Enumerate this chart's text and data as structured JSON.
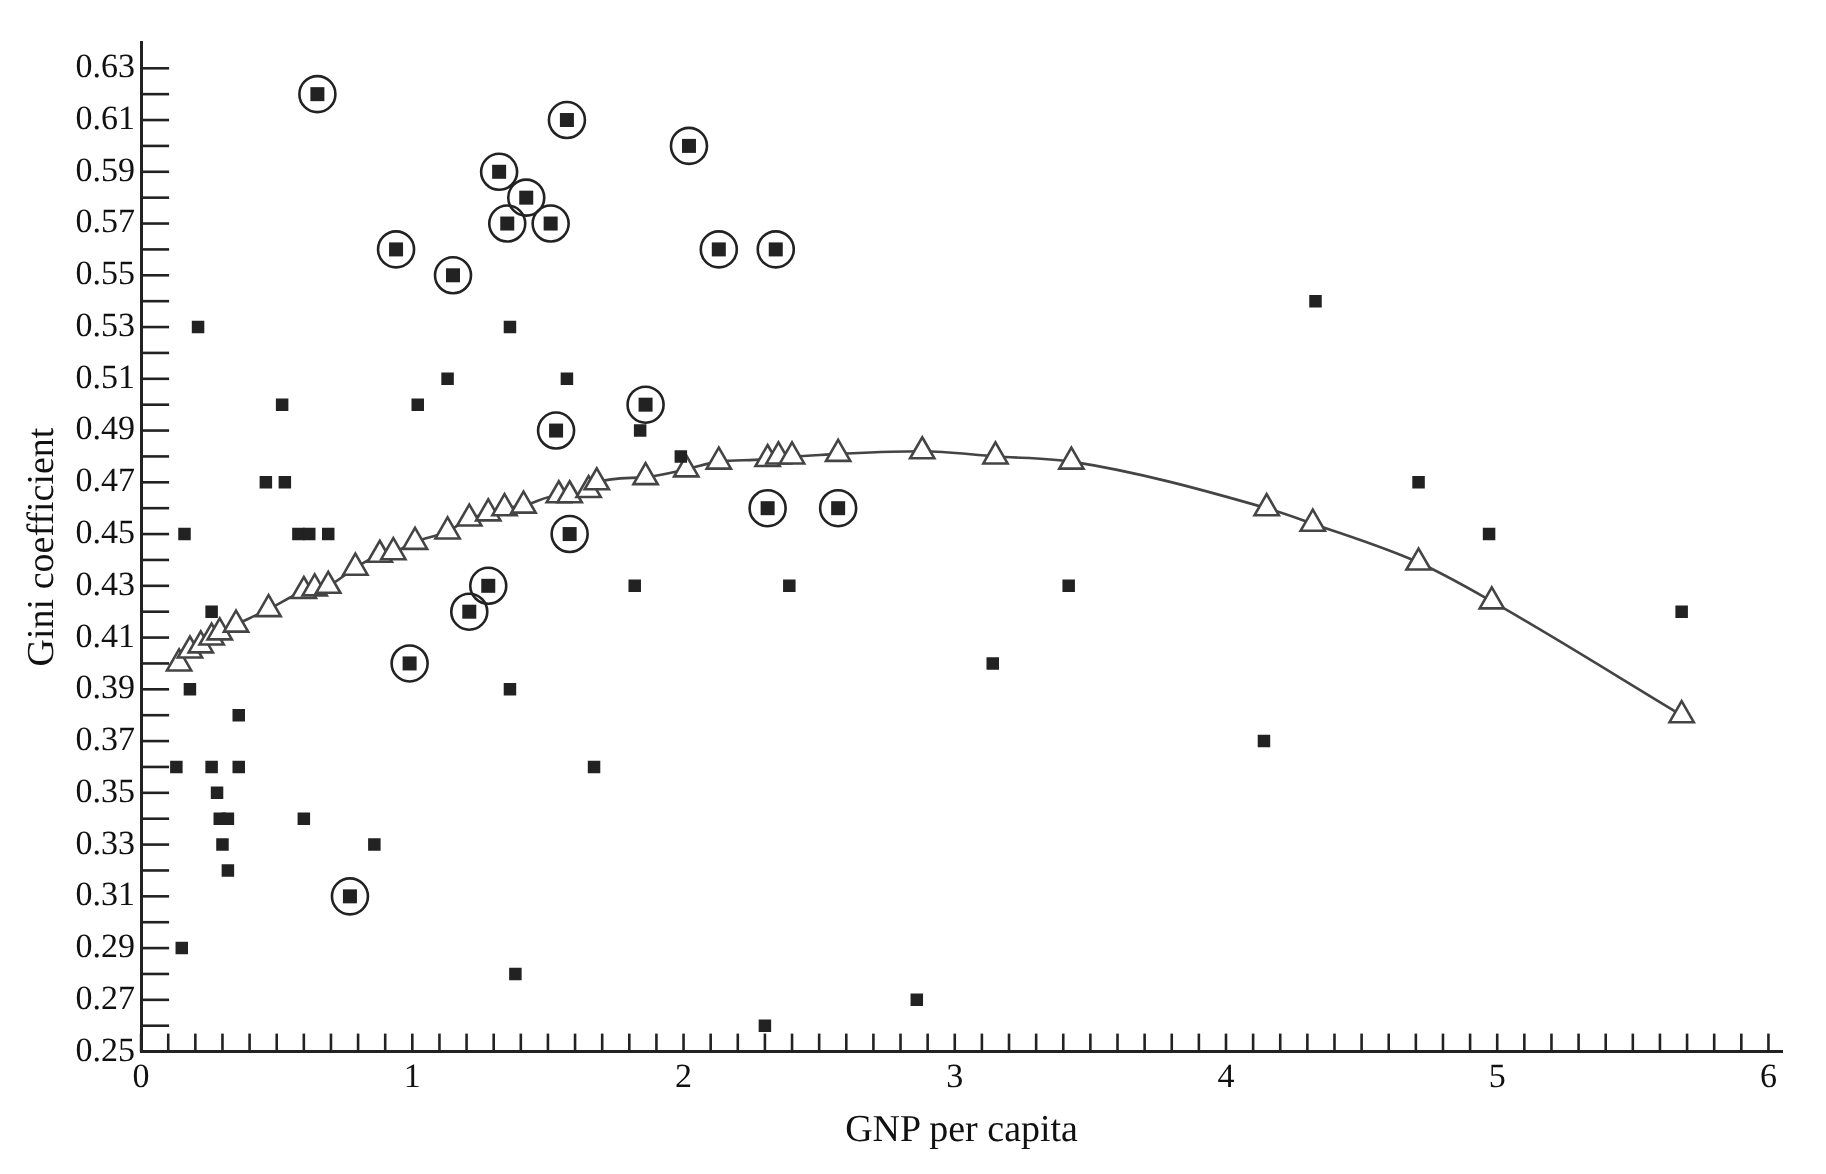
{
  "chart_data": {
    "type": "scatter",
    "xlabel": "GNP per capita",
    "ylabel": "Gini coefficient",
    "xlim": [
      0,
      6.05
    ],
    "ylim": [
      0.25,
      0.64
    ],
    "xticks": [
      0,
      {
        "value": 0.1,
        "label": null
      },
      {
        "value": 0.2,
        "label": null
      },
      {
        "value": 0.3,
        "label": null
      },
      {
        "value": 0.4,
        "label": null
      },
      {
        "value": 0.5,
        "label": null
      },
      {
        "value": 0.6,
        "label": null
      },
      {
        "value": 0.7,
        "label": null
      },
      {
        "value": 0.8,
        "label": null
      },
      {
        "value": 0.9,
        "label": null
      },
      1,
      {
        "value": 1.1,
        "label": null
      },
      {
        "value": 1.2,
        "label": null
      },
      {
        "value": 1.3,
        "label": null
      },
      {
        "value": 1.4,
        "label": null
      },
      {
        "value": 1.5,
        "label": null
      },
      {
        "value": 1.6,
        "label": null
      },
      {
        "value": 1.7,
        "label": null
      },
      {
        "value": 1.8,
        "label": null
      },
      {
        "value": 1.9,
        "label": null
      },
      2,
      {
        "value": 2.1,
        "label": null
      },
      {
        "value": 2.2,
        "label": null
      },
      {
        "value": 2.3,
        "label": null
      },
      {
        "value": 2.4,
        "label": null
      },
      {
        "value": 2.5,
        "label": null
      },
      {
        "value": 2.6,
        "label": null
      },
      {
        "value": 2.7,
        "label": null
      },
      {
        "value": 2.8,
        "label": null
      },
      {
        "value": 2.9,
        "label": null
      },
      3,
      {
        "value": 3.1,
        "label": null
      },
      {
        "value": 3.2,
        "label": null
      },
      {
        "value": 3.3,
        "label": null
      },
      {
        "value": 3.4,
        "label": null
      },
      {
        "value": 3.5,
        "label": null
      },
      {
        "value": 3.6,
        "label": null
      },
      {
        "value": 3.7,
        "label": null
      },
      {
        "value": 3.8,
        "label": null
      },
      {
        "value": 3.9,
        "label": null
      },
      4,
      {
        "value": 4.1,
        "label": null
      },
      {
        "value": 4.2,
        "label": null
      },
      {
        "value": 4.3,
        "label": null
      },
      {
        "value": 4.4,
        "label": null
      },
      {
        "value": 4.5,
        "label": null
      },
      {
        "value": 4.6,
        "label": null
      },
      {
        "value": 4.7,
        "label": null
      },
      {
        "value": 4.8,
        "label": null
      },
      {
        "value": 4.9,
        "label": null
      },
      5,
      {
        "value": 5.1,
        "label": null
      },
      {
        "value": 5.2,
        "label": null
      },
      {
        "value": 5.3,
        "label": null
      },
      {
        "value": 5.4,
        "label": null
      },
      {
        "value": 5.5,
        "label": null
      },
      {
        "value": 5.6,
        "label": null
      },
      {
        "value": 5.7,
        "label": null
      },
      {
        "value": 5.8,
        "label": null
      },
      {
        "value": 5.9,
        "label": null
      },
      6
    ],
    "yticks": [
      0.25,
      {
        "value": 0.26,
        "label": null
      },
      0.27,
      {
        "value": 0.28,
        "label": null
      },
      0.29,
      {
        "value": 0.3,
        "label": null
      },
      0.31,
      {
        "value": 0.32,
        "label": null
      },
      0.33,
      {
        "value": 0.34,
        "label": null
      },
      0.35,
      {
        "value": 0.36,
        "label": null
      },
      0.37,
      {
        "value": 0.38,
        "label": null
      },
      0.39,
      {
        "value": 0.4,
        "label": null
      },
      0.41,
      {
        "value": 0.42,
        "label": null
      },
      0.43,
      {
        "value": 0.44,
        "label": null
      },
      0.45,
      {
        "value": 0.46,
        "label": null
      },
      0.47,
      {
        "value": 0.48,
        "label": null
      },
      0.49,
      {
        "value": 0.5,
        "label": null
      },
      0.51,
      {
        "value": 0.52,
        "label": null
      },
      0.53,
      {
        "value": 0.54,
        "label": null
      },
      0.55,
      {
        "value": 0.56,
        "label": null
      },
      0.57,
      {
        "value": 0.58,
        "label": null
      },
      0.59,
      {
        "value": 0.6,
        "label": null
      },
      0.61,
      {
        "value": 0.62,
        "label": null
      },
      0.63
    ],
    "grid": false,
    "legend": false,
    "series": [
      {
        "marker": "square",
        "color": "#222222",
        "x": [
          0.21,
          0.52,
          1.02,
          1.13,
          1.36,
          1.57,
          0.46,
          0.53,
          0.16,
          0.58,
          0.62,
          0.69,
          0.26,
          0.18,
          0.36,
          0.13,
          0.26,
          0.36,
          0.28,
          0.29,
          0.32,
          0.3,
          0.32,
          0.6,
          0.86,
          0.15,
          1.36,
          1.38,
          1.67,
          1.84,
          1.99,
          1.82,
          2.39,
          3.42,
          3.14,
          2.86,
          2.3,
          4.33,
          4.71,
          4.97,
          5.68,
          4.14
        ],
        "values": [
          0.53,
          0.5,
          0.5,
          0.51,
          0.53,
          0.51,
          0.47,
          0.47,
          0.45,
          0.45,
          0.45,
          0.45,
          0.42,
          0.39,
          0.38,
          0.36,
          0.36,
          0.36,
          0.35,
          0.34,
          0.34,
          0.33,
          0.32,
          0.34,
          0.33,
          0.29,
          0.39,
          0.28,
          0.36,
          0.49,
          0.48,
          0.43,
          0.43,
          0.43,
          0.4,
          0.27,
          0.26,
          0.54,
          0.47,
          0.45,
          0.42,
          0.37
        ]
      },
      {
        "marker": "circle",
        "color": "#222222",
        "x": [
          0.99,
          0.77,
          1.21,
          1.28,
          0.65,
          1.57,
          1.32,
          1.42,
          1.35,
          1.51,
          0.94,
          1.15,
          1.53,
          1.58,
          2.02,
          2.13,
          2.34,
          1.86,
          2.31,
          2.57
        ],
        "values": [
          0.4,
          0.31,
          0.42,
          0.43,
          0.62,
          0.61,
          0.59,
          0.58,
          0.57,
          0.57,
          0.56,
          0.55,
          0.49,
          0.45,
          0.6,
          0.56,
          0.56,
          0.5,
          0.46,
          0.46
        ]
      },
      {
        "type": "line",
        "marker": "triangle",
        "color": "#444444",
        "x": [
          0.14,
          0.18,
          0.22,
          0.26,
          0.29,
          0.35,
          0.47,
          0.6,
          0.64,
          0.69,
          0.79,
          0.88,
          0.93,
          1.01,
          1.13,
          1.21,
          1.28,
          1.34,
          1.41,
          1.54,
          1.58,
          1.65,
          1.68,
          1.86,
          2.01,
          2.13,
          2.31,
          2.35,
          2.4,
          2.57,
          2.88,
          3.15,
          3.43,
          4.15,
          4.32,
          4.71,
          4.98,
          5.68
        ],
        "values": [
          0.4,
          0.405,
          0.407,
          0.41,
          0.412,
          0.415,
          0.421,
          0.428,
          0.429,
          0.43,
          0.437,
          0.442,
          0.443,
          0.447,
          0.451,
          0.456,
          0.458,
          0.46,
          0.461,
          0.465,
          0.465,
          0.467,
          0.47,
          0.472,
          0.475,
          0.478,
          0.479,
          0.48,
          0.48,
          0.481,
          0.482,
          0.48,
          0.478,
          0.46,
          0.454,
          0.439,
          0.424,
          0.38
        ]
      }
    ]
  }
}
